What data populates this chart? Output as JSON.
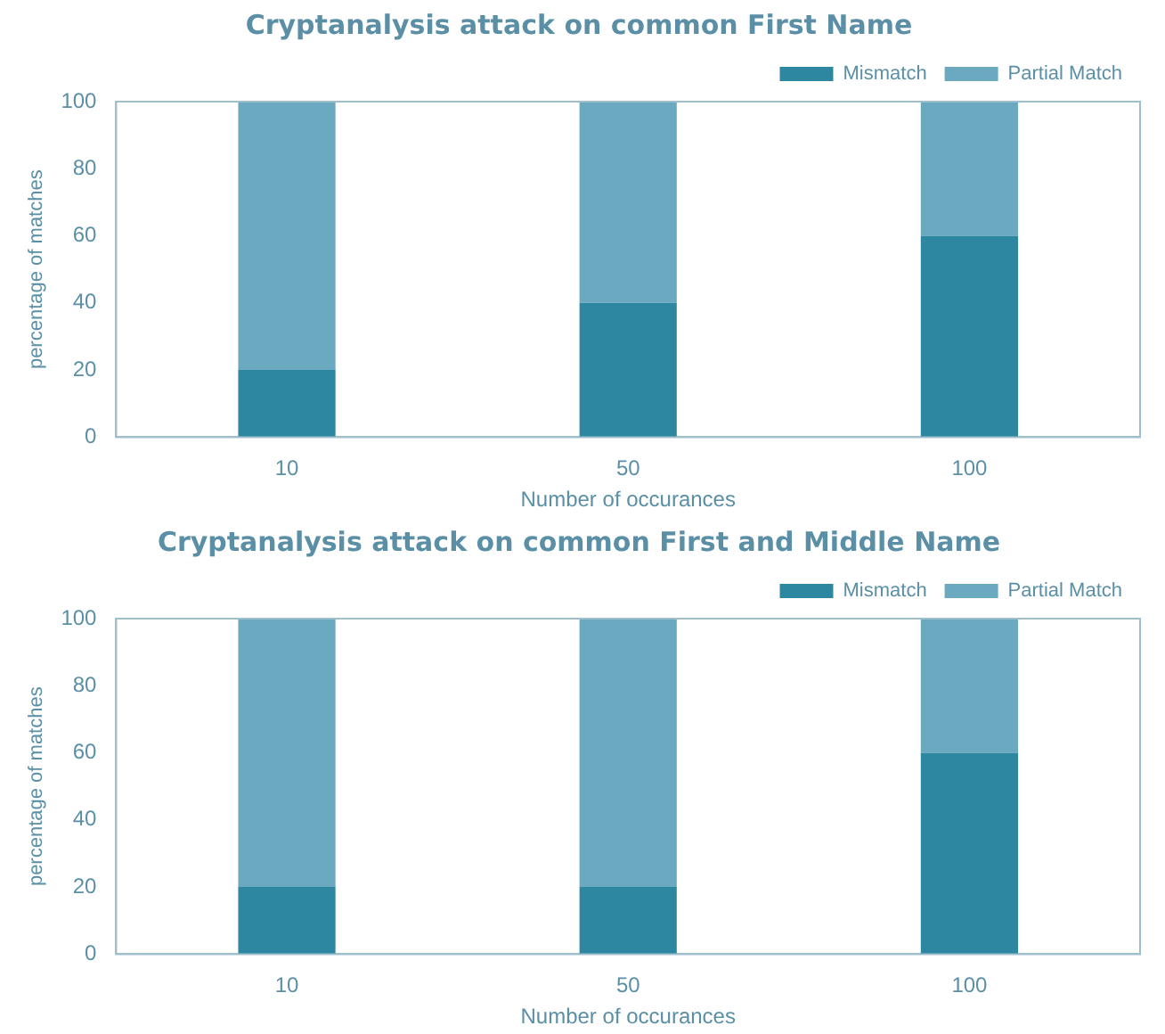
{
  "chart_data": [
    {
      "type": "bar",
      "title": "Cryptanalysis attack on common First Name",
      "xlabel": "Number of occurances",
      "ylabel": "percentage of matches",
      "categories": [
        "10",
        "50",
        "100"
      ],
      "stacked": true,
      "ylim": [
        0,
        100
      ],
      "yticks": [
        0,
        20,
        40,
        60,
        80,
        100
      ],
      "grid": false,
      "legend": "top right",
      "series": [
        {
          "name": "Mismatch",
          "color": "#2e87a0",
          "values": [
            20,
            40,
            60
          ]
        },
        {
          "name": "Partial Match",
          "color": "#6aa9bf",
          "values": [
            80,
            60,
            40
          ]
        }
      ]
    },
    {
      "type": "bar",
      "title": "Cryptanalysis attack on common First and Middle Name",
      "xlabel": "Number of occurances",
      "ylabel": "percentage of matches",
      "categories": [
        "10",
        "50",
        "100"
      ],
      "stacked": true,
      "ylim": [
        0,
        100
      ],
      "yticks": [
        0,
        20,
        40,
        60,
        80,
        100
      ],
      "grid": false,
      "legend": "top right",
      "series": [
        {
          "name": "Mismatch",
          "color": "#2e87a0",
          "values": [
            20,
            20,
            60
          ]
        },
        {
          "name": "Partial Match",
          "color": "#6aa9bf",
          "values": [
            80,
            80,
            40
          ]
        }
      ]
    }
  ]
}
